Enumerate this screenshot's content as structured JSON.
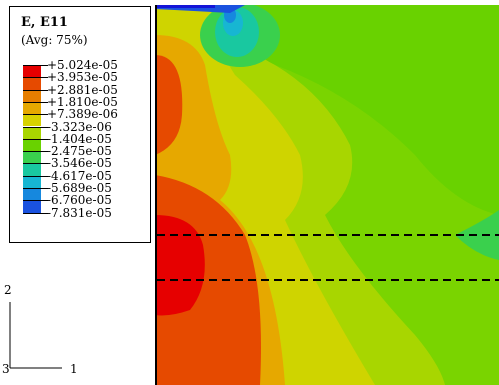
{
  "legend": {
    "title": "E, E11",
    "subtitle": "(Avg: 75%)",
    "labels": [
      "+5.024e-05",
      "+3.953e-05",
      "+2.881e-05",
      "+1.810e-05",
      "+7.389e-06",
      "-3.323e-06",
      "-1.404e-05",
      "-2.475e-05",
      "-3.546e-05",
      "-4.617e-05",
      "-5.689e-05",
      "-6.760e-05",
      "-7.831e-05"
    ],
    "colors": [
      "#e60000",
      "#e64a00",
      "#e67e00",
      "#e6a800",
      "#d7d200",
      "#a8d600",
      "#69d200",
      "#3ad04d",
      "#19c8a0",
      "#17b6d2",
      "#1688de",
      "#1a52df",
      "#1414d8"
    ]
  },
  "triad": {
    "axis_vertical": "2",
    "axis_horizontal": "1",
    "axis_out": "3"
  },
  "colors": {
    "red": "#e60000",
    "orange_red": "#e64a00",
    "orange": "#e6a800",
    "yellow": "#cfd400",
    "yellow_green": "#a8d600",
    "green": "#7ad400",
    "green2": "#69d200",
    "teal": "#3ad04d",
    "cyan": "#19c8a0",
    "blue": "#1414d8",
    "dash": "#000000"
  }
}
